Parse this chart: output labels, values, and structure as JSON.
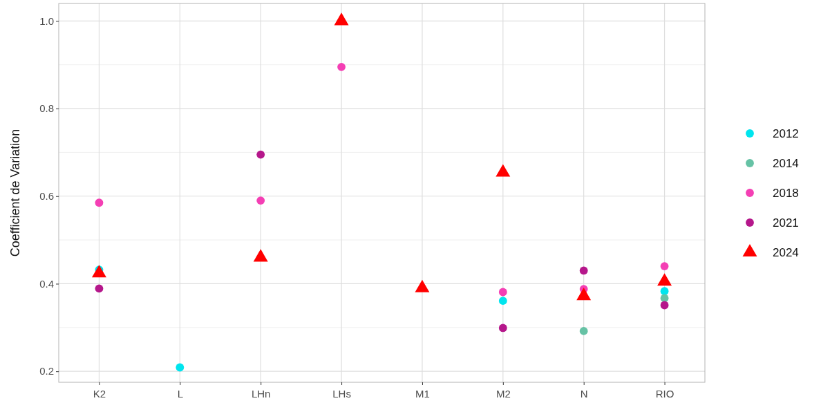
{
  "chart_data": {
    "type": "scatter",
    "ylabel": "Coefficient de Variation",
    "categories": [
      "K2",
      "L",
      "LHn",
      "LHs",
      "M1",
      "M2",
      "N",
      "RIO"
    ],
    "ylim": [
      0.175,
      1.04
    ],
    "yticks": [
      0.2,
      0.4,
      0.6,
      0.8,
      {
        "value": 1,
        "label": "1.0"
      }
    ],
    "grid": true,
    "legend": "right",
    "series": [
      {
        "name": "2012",
        "color": "#00e5ee",
        "marker": "circle",
        "values": [
          0.432,
          0.209,
          null,
          null,
          null,
          0.361,
          null,
          0.383
        ]
      },
      {
        "name": "2014",
        "color": "#66c2a5",
        "marker": "circle",
        "values": [
          null,
          null,
          null,
          null,
          null,
          null,
          0.292,
          0.367
        ]
      },
      {
        "name": "2018",
        "color": "#f43fb4",
        "marker": "circle",
        "values": [
          0.585,
          null,
          0.59,
          0.895,
          null,
          0.381,
          0.388,
          0.44
        ]
      },
      {
        "name": "2021",
        "color": "#b5178b",
        "marker": "circle",
        "values": [
          0.389,
          null,
          0.695,
          null,
          null,
          0.299,
          0.43,
          0.351
        ]
      },
      {
        "name": "2024",
        "color": "#ff0000",
        "marker": "triangle",
        "values": [
          0.424,
          null,
          0.46,
          1.0,
          0.39,
          0.654,
          0.372,
          0.405
        ]
      }
    ]
  }
}
